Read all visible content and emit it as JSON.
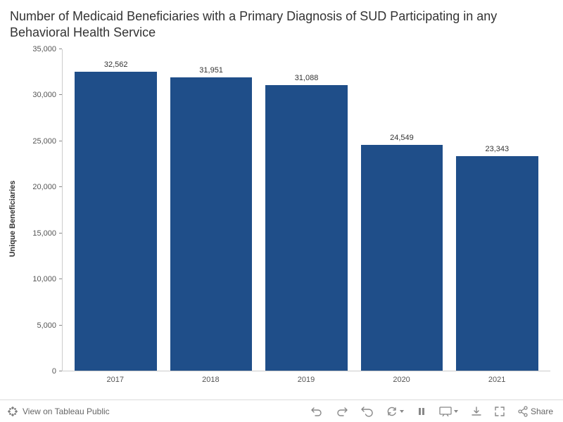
{
  "chart": {
    "type": "bar",
    "title": "Number of Medicaid Beneficiaries with a Primary Diagnosis of SUD Participating in any Behavioral Health Service",
    "title_fontsize": 18,
    "title_color": "#333333",
    "ylabel": "Unique Beneficiaries",
    "ylabel_fontsize": 11,
    "categories": [
      "2017",
      "2018",
      "2019",
      "2020",
      "2021"
    ],
    "values": [
      32562,
      31951,
      31088,
      24549,
      23343
    ],
    "value_labels": [
      "32,562",
      "31,951",
      "31,088",
      "24,549",
      "23,343"
    ],
    "bar_color": "#1f4e89",
    "bar_width_pct": 86,
    "ylim": [
      0,
      35000
    ],
    "yticks": [
      0,
      5000,
      10000,
      15000,
      20000,
      25000,
      30000,
      35000
    ],
    "ytick_labels": [
      "0",
      "5,000",
      "10,000",
      "15,000",
      "20,000",
      "25,000",
      "30,000",
      "35,000"
    ],
    "tick_fontsize": 11,
    "value_label_fontsize": 11,
    "background_color": "#ffffff",
    "axis_color": "#cccccc",
    "text_color": "#555555"
  },
  "toolbar": {
    "view_label": "View on Tableau Public",
    "undo_label": "Undo",
    "redo_label": "Redo",
    "revert_label": "Revert",
    "refresh_label": "Refresh",
    "pause_label": "Pause",
    "present_label": "Presentation",
    "download_label": "Download",
    "fullscreen_label": "Full Screen",
    "share_label": "Share"
  }
}
